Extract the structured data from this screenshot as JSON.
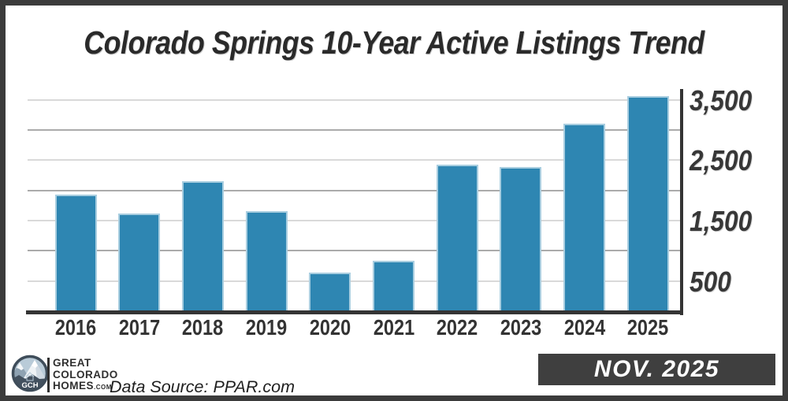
{
  "frame": {
    "border_color": "#3b3b3b",
    "background": "#ffffff"
  },
  "chart_data": {
    "type": "bar",
    "title": "Colorado Springs 10-Year Active Listings Trend",
    "categories": [
      "2016",
      "2017",
      "2018",
      "2019",
      "2020",
      "2021",
      "2022",
      "2023",
      "2024",
      "2025"
    ],
    "values": [
      1925,
      1620,
      2150,
      1660,
      645,
      830,
      2425,
      2390,
      3100,
      3560
    ],
    "xlabel": "",
    "ylabel": "",
    "ylim": [
      0,
      3700
    ],
    "grid": "on",
    "legend": "none",
    "y_axis": {
      "side": "right",
      "tick_values": [
        3500,
        2500,
        1500,
        500
      ],
      "tick_labels": [
        "3,500",
        "2,500",
        "1,500",
        "500"
      ],
      "gridline_values": [
        500,
        1000,
        1500,
        2000,
        2500,
        3000,
        3500
      ]
    },
    "colors": {
      "bar_fill": "#2e86b2",
      "bar_edge": "#a9cee0",
      "grid_minor": "#d9d9d9",
      "grid_major": "#ababab",
      "axis": "#343434",
      "title_text": "#2a2a2a",
      "tick_text": "#373737"
    }
  },
  "footer": {
    "logo": {
      "monogram": "GCH",
      "line1": "GREAT",
      "line2": "COLORADO",
      "line3": "HOMES",
      "suffix": ".COM"
    },
    "data_source": "Data Source: PPAR.com",
    "badge": {
      "label": "NOV. 2025",
      "bg": "#3f3f3f",
      "text_color": "#ffffff"
    }
  }
}
